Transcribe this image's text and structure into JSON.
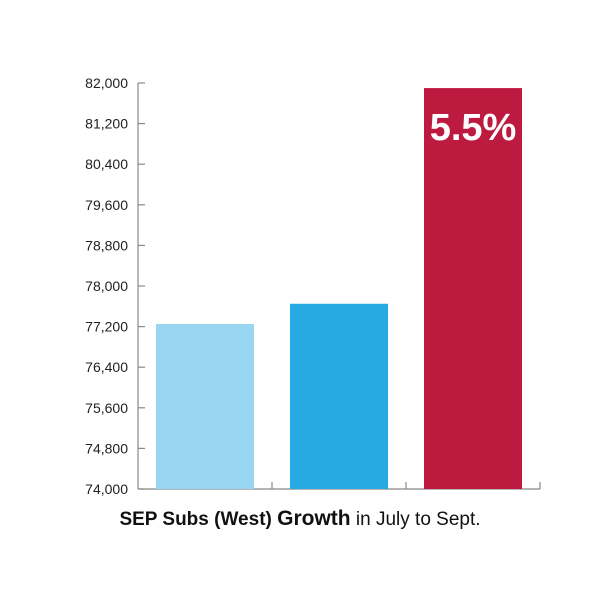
{
  "chart_data": {
    "type": "bar",
    "categories": [
      "",
      "",
      ""
    ],
    "values": [
      77250,
      77650,
      81900
    ],
    "colors": [
      "#98d5f0",
      "#27a9e1",
      "#bd1a40"
    ],
    "ylim": [
      74000,
      82000
    ],
    "yticks": [
      74000,
      74800,
      75600,
      76400,
      77200,
      78000,
      78800,
      79600,
      80400,
      81200,
      82000
    ],
    "ytick_labels": [
      "74,000",
      "74,800",
      "75,600",
      "76,400",
      "77,200",
      "78,000",
      "78,800",
      "79,600",
      "80,400",
      "81,200",
      "82,000"
    ],
    "annotations": [
      {
        "bar_index": 2,
        "text": "5.5%"
      }
    ],
    "grid": false
  },
  "caption": {
    "part1": "SEP Subs (West)",
    "part2": "Growth",
    "part3": "in July to Sept."
  }
}
